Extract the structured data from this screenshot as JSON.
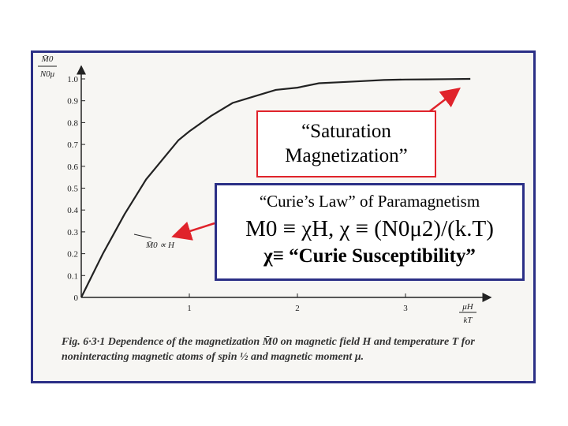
{
  "chart_data": {
    "type": "line",
    "series": [
      {
        "x": [
          0,
          0.1,
          0.2,
          0.3,
          0.4,
          0.5,
          0.6,
          0.7,
          0.8,
          0.9,
          1.0,
          1.2,
          1.4,
          1.6,
          1.8,
          2.0,
          2.2,
          2.4,
          2.6,
          2.8,
          3.0,
          3.2,
          3.4,
          3.6
        ],
        "values": [
          0,
          0.1,
          0.2,
          0.29,
          0.38,
          0.46,
          0.54,
          0.6,
          0.66,
          0.72,
          0.76,
          0.83,
          0.89,
          0.92,
          0.95,
          0.96,
          0.98,
          0.985,
          0.99,
          0.995,
          0.997,
          0.998,
          0.999,
          1.0
        ]
      }
    ],
    "xlim": [
      0,
      3.7
    ],
    "ylim": [
      0,
      1.0
    ],
    "xticks": [
      "1",
      "2",
      "3"
    ],
    "yticks": [
      "0",
      "0.1",
      "0.2",
      "0.3",
      "0.4",
      "0.5",
      "0.6",
      "0.7",
      "0.8",
      "0.9",
      "1.0"
    ],
    "xlabel": "μH / kT",
    "ylabel": "M̄0 / N0μ",
    "annotation": "M̄0 ∝ H",
    "grid": false
  },
  "saturation": {
    "line1": "“Saturation",
    "line2": "Magnetization”"
  },
  "curie": {
    "title": "“Curie’s Law” of  Paramagnetism",
    "eq1": "M0 ≡ χH, χ ≡ (N0μ2)/(k.T)",
    "eq2": "χ≡ “Curie Susceptibility”"
  },
  "caption": "Fig. 6·3·1  Dependence of the magnetization M̄0 on magnetic field H and temperature T for noninteracting magnetic atoms of spin ½ and magnetic moment μ.",
  "colors": {
    "frame": "#2b2f86",
    "arrow": "#e0232b",
    "curve": "#222222"
  }
}
